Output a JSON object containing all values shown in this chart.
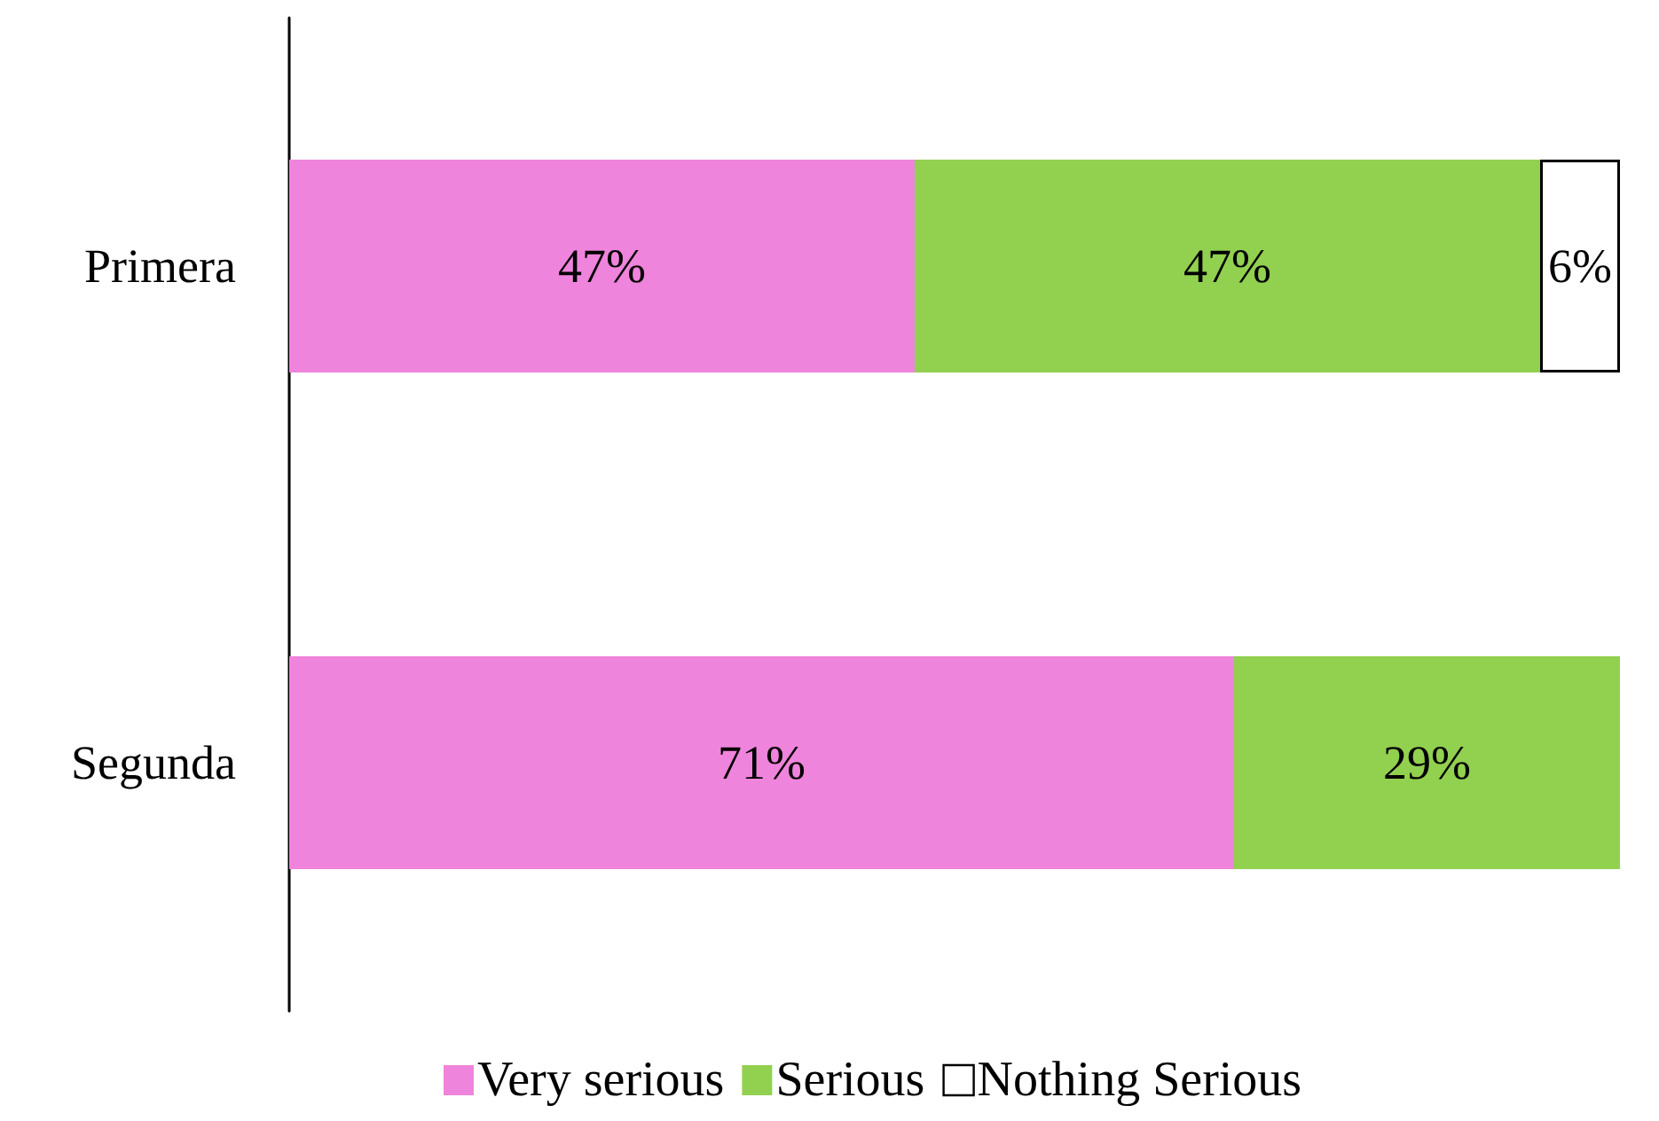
{
  "chart_data": {
    "type": "bar",
    "orientation": "horizontal",
    "stacked": true,
    "categories": [
      "Primera",
      "Segunda"
    ],
    "series": [
      {
        "name": "Very serious",
        "color": "#ef84dc",
        "values": [
          47,
          71
        ],
        "value_labels": [
          "47%",
          "71%"
        ]
      },
      {
        "name": "Serious",
        "color": "#92d050",
        "values": [
          47,
          29
        ],
        "value_labels": [
          "47%",
          "29%"
        ]
      },
      {
        "name": "Nothing Serious",
        "color": "#ffffff",
        "values": [
          6,
          null
        ],
        "value_labels": [
          "6%",
          null
        ]
      }
    ],
    "legend": "bottom",
    "grid": false
  }
}
